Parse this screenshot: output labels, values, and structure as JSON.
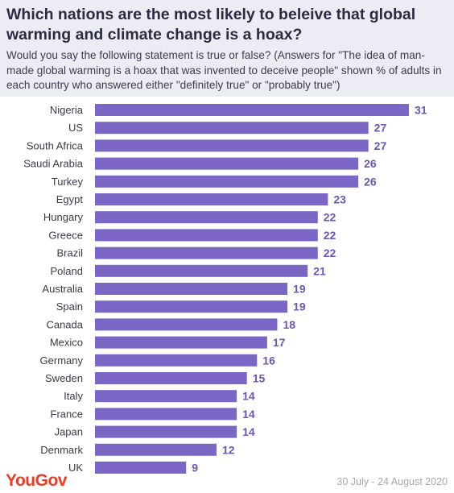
{
  "header": {
    "title": "Which nations are the most likely to beleive that global warming and climate change is a hoax?",
    "subtitle": "Would you say the following statement is true or false? (Answers for \"The idea of man-made global warming is a hoax that was invented to deceive people\" shown % of adults in each country who answered either \"definitely true\" or \"probably true\")"
  },
  "footer": {
    "brand": "YouGov",
    "date_range": "30 July - 24 August 2020"
  },
  "colors": {
    "bar": "#7b66c6",
    "value_label": "#6b55b8",
    "category_label": "#3a3a4a",
    "header_bg": "#ececf4",
    "brand": "#ef3b25"
  },
  "chart_data": {
    "type": "bar",
    "orientation": "horizontal",
    "title": "Which nations are the most likely to beleive that global warming and climate change is a hoax?",
    "categories": [
      "Nigeria",
      "US",
      "South Africa",
      "Saudi Arabia",
      "Turkey",
      "Egypt",
      "Hungary",
      "Greece",
      "Brazil",
      "Poland",
      "Australia",
      "Spain",
      "Canada",
      "Mexico",
      "Germany",
      "Sweden",
      "Italy",
      "France",
      "Japan",
      "Denmark",
      "UK"
    ],
    "values": [
      31,
      27,
      27,
      26,
      26,
      23,
      22,
      22,
      22,
      21,
      19,
      19,
      18,
      17,
      16,
      15,
      14,
      14,
      14,
      12,
      9
    ],
    "xlabel": "",
    "ylabel": "",
    "xlim": [
      0,
      31
    ],
    "grid": false,
    "data_labels": true
  }
}
